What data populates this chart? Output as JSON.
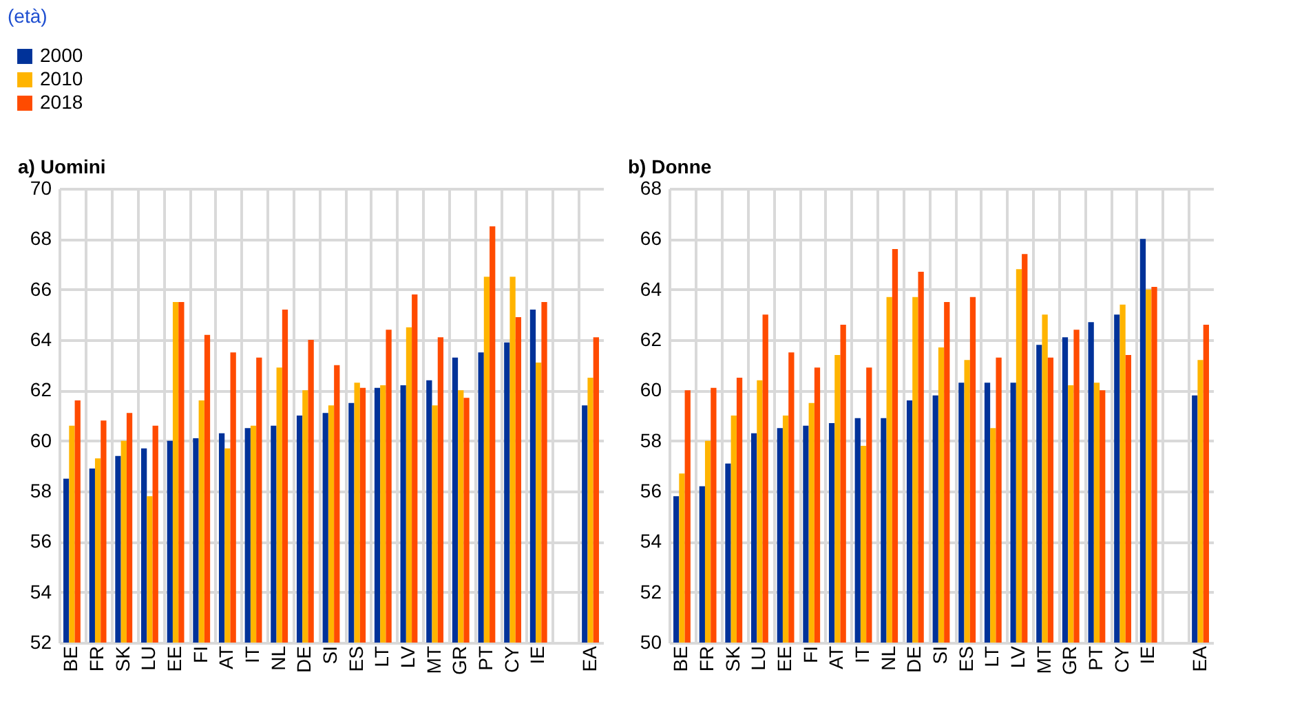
{
  "chart_data": [
    {
      "type": "bar",
      "title": "a) Uomini",
      "ylabel": "(età)",
      "legend": "top left",
      "grid": true,
      "categories": [
        "BE",
        "FR",
        "SK",
        "LU",
        "EE",
        "FI",
        "AT",
        "IT",
        "NL",
        "DE",
        "SI",
        "ES",
        "LT",
        "LV",
        "MT",
        "GR",
        "PT",
        "CY",
        "IE",
        null,
        "EA"
      ],
      "ylim": [
        52,
        70
      ],
      "yticks": [
        52,
        54,
        56,
        58,
        60,
        62,
        64,
        66,
        68,
        70
      ],
      "series": [
        {
          "name": "2000",
          "color": "#003299",
          "values": [
            58.5,
            58.9,
            59.4,
            59.7,
            60.0,
            60.1,
            60.3,
            60.5,
            60.6,
            61.0,
            61.1,
            61.5,
            62.1,
            62.2,
            62.4,
            63.3,
            63.5,
            63.9,
            65.2,
            null,
            61.4
          ]
        },
        {
          "name": "2010",
          "color": "#ffb400",
          "values": [
            60.6,
            59.3,
            60.0,
            57.8,
            65.5,
            61.6,
            59.7,
            60.6,
            62.9,
            62.0,
            61.4,
            62.3,
            62.2,
            64.5,
            61.4,
            62.0,
            66.5,
            66.5,
            63.1,
            null,
            62.5
          ]
        },
        {
          "name": "2018",
          "color": "#ff4b00",
          "values": [
            61.6,
            60.8,
            61.1,
            60.6,
            65.5,
            64.2,
            63.5,
            63.3,
            65.2,
            64.0,
            63.0,
            62.1,
            64.4,
            65.8,
            64.1,
            61.7,
            68.5,
            64.9,
            65.5,
            null,
            64.1
          ]
        }
      ]
    },
    {
      "type": "bar",
      "title": "b) Donne",
      "grid": true,
      "categories": [
        "BE",
        "FR",
        "SK",
        "LU",
        "EE",
        "FI",
        "AT",
        "IT",
        "NL",
        "DE",
        "SI",
        "ES",
        "LT",
        "LV",
        "MT",
        "GR",
        "PT",
        "CY",
        "IE",
        null,
        "EA"
      ],
      "ylim": [
        50,
        68
      ],
      "yticks": [
        50,
        52,
        54,
        56,
        58,
        60,
        62,
        64,
        66,
        68
      ],
      "series": [
        {
          "name": "2000",
          "color": "#003299",
          "values": [
            55.8,
            56.2,
            57.1,
            58.3,
            58.5,
            58.6,
            58.7,
            58.9,
            58.9,
            59.6,
            59.8,
            60.3,
            60.3,
            60.3,
            61.8,
            62.1,
            62.7,
            63.0,
            66.0,
            null,
            59.8
          ]
        },
        {
          "name": "2010",
          "color": "#ffb400",
          "values": [
            56.7,
            58.0,
            59.0,
            60.4,
            59.0,
            59.5,
            61.4,
            57.8,
            63.7,
            63.7,
            61.7,
            61.2,
            58.5,
            64.8,
            63.0,
            60.2,
            60.3,
            63.4,
            64.0,
            null,
            61.2
          ]
        },
        {
          "name": "2018",
          "color": "#ff4b00",
          "values": [
            60.0,
            60.1,
            60.5,
            63.0,
            61.5,
            60.9,
            62.6,
            60.9,
            65.6,
            64.7,
            63.5,
            63.7,
            61.3,
            65.4,
            61.3,
            62.4,
            60.0,
            61.4,
            64.1,
            null,
            62.6
          ]
        }
      ]
    }
  ]
}
